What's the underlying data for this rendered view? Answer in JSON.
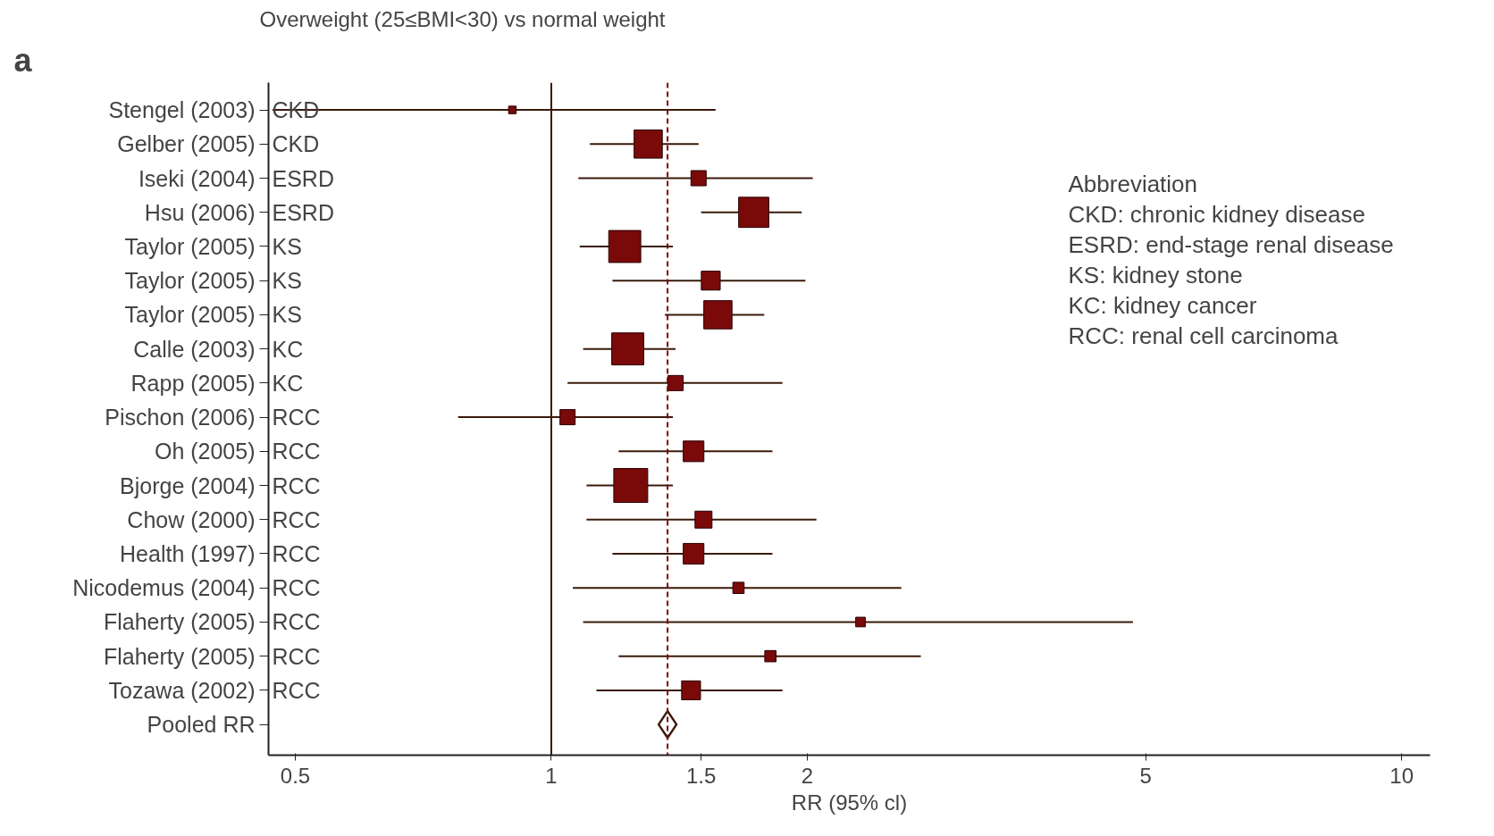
{
  "chart_data": {
    "type": "bubble",
    "orientation": "horizontal",
    "log": "x",
    "title": "Overweight (25≤BMI<30) vs normal weight",
    "xlabel": "RR (95% cl)",
    "categories": [
      "Stengel (2003)",
      "Gelber (2005)",
      "Iseki (2004)",
      "Hsu (2006)",
      "Taylor (2005)",
      "Taylor (2005)",
      "Taylor (2005)",
      "Calle (2003)",
      "Rapp (2005)",
      "Pischon (2006)",
      "Oh (2005)",
      "Bjorge (2004)",
      "Chow (2000)",
      "Health (1997)",
      "Nicodemus (2004)",
      "Flaherty (2005)",
      "Flaherty (2005)",
      "Tozawa (2002)",
      "Pooled RR"
    ],
    "series": [
      {
        "marker": "square",
        "color": "#7a0a0a",
        "values": [
          0.9,
          1.3,
          1.49,
          1.73,
          1.22,
          1.54,
          1.57,
          1.23,
          1.4,
          1.045,
          1.47,
          1.24,
          1.51,
          1.47,
          1.66,
          2.31,
          1.81,
          1.46,
          null
        ],
        "sizes": [
          0.05,
          0.69,
          0.2,
          0.79,
          0.89,
          0.31,
          0.69,
          0.89,
          0.2,
          0.2,
          0.37,
          1,
          0.25,
          0.37,
          0.11,
          0.08,
          0.11,
          0.31,
          null
        ],
        "errors": [
          [
            0.47,
            1.56
          ],
          [
            1.11,
            1.49
          ],
          [
            1.076,
            2.03
          ],
          [
            1.5,
            1.97
          ],
          [
            1.08,
            1.39
          ],
          [
            1.18,
            1.99
          ],
          [
            1.36,
            1.78
          ],
          [
            1.09,
            1.4
          ],
          [
            1.045,
            1.87
          ],
          [
            0.777,
            1.39
          ],
          [
            1.2,
            1.82
          ],
          [
            1.1,
            1.39
          ],
          [
            1.1,
            2.05
          ],
          [
            1.18,
            1.82
          ],
          [
            1.06,
            2.58
          ],
          [
            1.09,
            4.83
          ],
          [
            1.2,
            2.72
          ],
          [
            1.13,
            1.87
          ],
          null
        ]
      },
      {
        "type": "scatter",
        "marker": "diamond",
        "color": "#3a1a0a",
        "values": [
          null,
          null,
          null,
          null,
          null,
          null,
          null,
          null,
          null,
          null,
          null,
          null,
          null,
          null,
          null,
          null,
          null,
          null,
          1.37
        ]
      }
    ],
    "xlim": [
      0.465,
      10.8
    ],
    "xticks": [
      0.5,
      1,
      1.5,
      2,
      5,
      10
    ],
    "ref_lines": [
      {
        "axis": "x",
        "value": 1,
        "line_style": "solid",
        "color": "#3a1a0a"
      },
      {
        "axis": "x",
        "value": 1.37,
        "line_style": "dashed",
        "color": "#7a0a0a"
      }
    ],
    "annotations": [
      "a",
      "CKD",
      "CKD",
      "ESRD",
      "ESRD",
      "KS",
      "KS",
      "KS",
      "KC",
      "KC",
      "RCC",
      "RCC",
      "RCC",
      "RCC",
      "RCC",
      "RCC",
      "RCC",
      "RCC",
      "RCC",
      "Abbreviation",
      "CKD: chronic kidney disease",
      "ESRD: end-stage renal disease",
      "KS: kidney stone",
      "KC: kidney cancer",
      "RCC: renal cell carcinoma"
    ]
  }
}
